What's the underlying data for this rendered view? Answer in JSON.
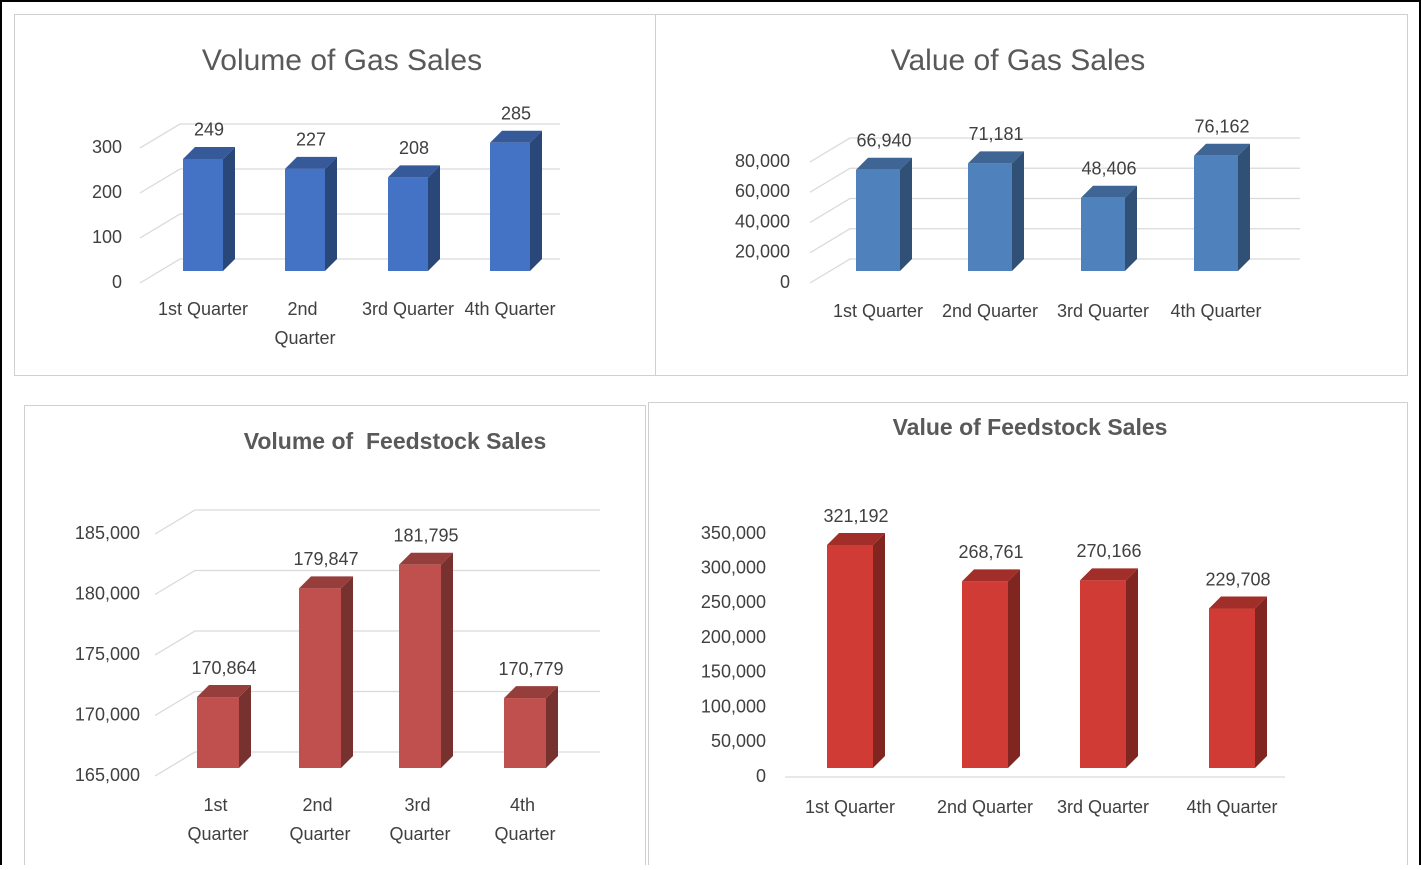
{
  "chart_data": [
    {
      "type": "bar3d",
      "title": "Volume of Gas Sales",
      "categories": [
        "1st Quarter",
        "2nd Quarter",
        "3rd Quarter",
        "4th Quarter"
      ],
      "values": [
        249,
        227,
        208,
        285
      ],
      "color": "#4472c4",
      "ylim": [
        0,
        300
      ],
      "yticks": [
        0,
        100,
        200,
        300
      ],
      "grid": true
    },
    {
      "type": "bar3d",
      "title": "Value of Gas Sales",
      "categories": [
        "1st Quarter",
        "2nd Quarter",
        "3rd Quarter",
        "4th Quarter"
      ],
      "values": [
        66940,
        71181,
        48406,
        76162
      ],
      "value_labels": [
        "66,940",
        "71,181",
        "48,406",
        "76,162"
      ],
      "color": "#4f81bd",
      "ylim": [
        0,
        80000
      ],
      "yticks": [
        0,
        {
          "value": 20000,
          "label": "20,000"
        },
        {
          "value": 40000,
          "label": "40,000"
        },
        {
          "value": 60000,
          "label": "60,000"
        },
        {
          "value": 80000,
          "label": "80,000"
        }
      ],
      "grid": true
    },
    {
      "type": "bar3d",
      "title": "Volume of  Feedstock Sales",
      "categories": [
        "1st Quarter",
        "2nd Quarter",
        "3rd Quarter",
        "4th Quarter"
      ],
      "values": [
        170864,
        179847,
        181795,
        170779
      ],
      "value_labels": [
        "170,864",
        "179,847",
        "181,795",
        "170,779"
      ],
      "color": "#c0504d",
      "ylim": [
        165000,
        185000
      ],
      "yticks": [
        {
          "value": 165000,
          "label": "165,000"
        },
        {
          "value": 170000,
          "label": "170,000"
        },
        {
          "value": 175000,
          "label": "175,000"
        },
        {
          "value": 180000,
          "label": "180,000"
        },
        {
          "value": 185000,
          "label": "185,000"
        }
      ],
      "grid": true
    },
    {
      "type": "bar3d",
      "title": "Value of Feedstock Sales",
      "categories": [
        "1st Quarter",
        "2nd Quarter",
        "3rd Quarter",
        "4th Quarter"
      ],
      "values": [
        321192,
        268761,
        270166,
        229708
      ],
      "value_labels": [
        "321,192",
        "268,761",
        "270,166",
        "229,708"
      ],
      "color": "#d03b35",
      "ylim": [
        0,
        350000
      ],
      "yticks": [
        0,
        {
          "value": 50000,
          "label": "50,000"
        },
        {
          "value": 100000,
          "label": "100,000"
        },
        {
          "value": 150000,
          "label": "150,000"
        },
        {
          "value": 200000,
          "label": "200,000"
        },
        {
          "value": 250000,
          "label": "250,000"
        },
        {
          "value": 300000,
          "label": "300,000"
        },
        {
          "value": 350000,
          "label": "350,000"
        }
      ],
      "grid": false
    }
  ]
}
